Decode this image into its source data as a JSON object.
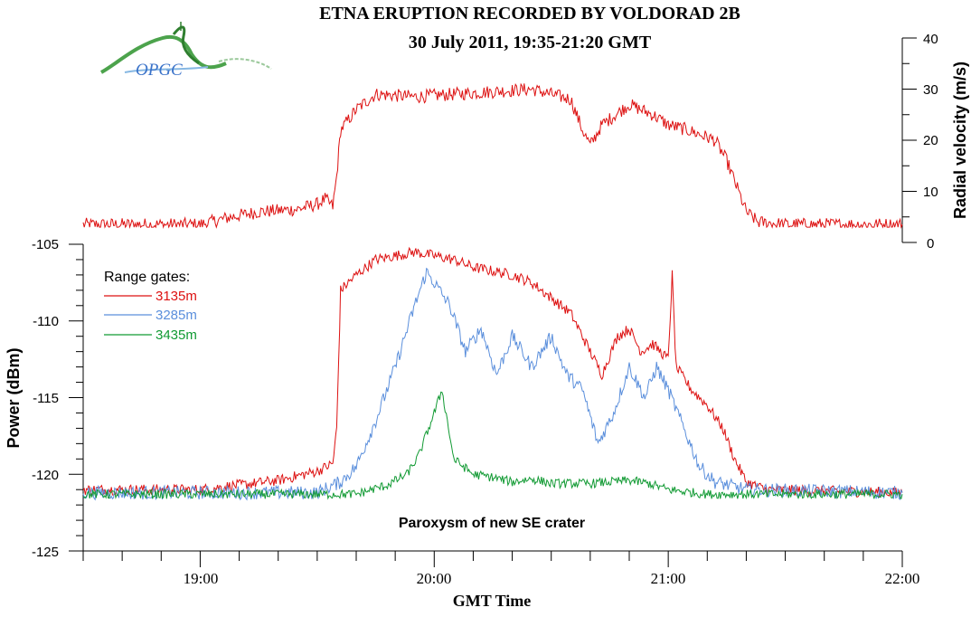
{
  "chart_data": {
    "type": "line",
    "title": "ETNA ERUPTION RECORDED BY VOLDORAD 2B",
    "subtitle": "30 July 2011, 19:35-21:20 GMT",
    "logo_text": "OPGC",
    "xlabel": "GMT Time",
    "x_ticks": [
      "19:00",
      "20:00",
      "21:00",
      "22:00"
    ],
    "xlim": [
      "18:30",
      "22:00"
    ],
    "annotation": "Paroxysm of new SE crater",
    "colors": {
      "red": "#dd1111",
      "blue": "#5b8fdc",
      "green": "#119a33"
    },
    "velocity_panel": {
      "ylabel": "Radial velocity (m/s)",
      "ylim": [
        0,
        40
      ],
      "y_ticks": [
        "0",
        "10",
        "20",
        "30",
        "40"
      ],
      "series": [
        {
          "color": "#dd1111",
          "points": [
            [
              "18:30",
              3.5
            ],
            [
              "19:00",
              3.5
            ],
            [
              "19:08",
              5
            ],
            [
              "19:15",
              6
            ],
            [
              "19:25",
              6.5
            ],
            [
              "19:30",
              7.5
            ],
            [
              "19:32",
              8.5
            ],
            [
              "19:34",
              7
            ],
            [
              "19:35",
              13
            ],
            [
              "19:36",
              22
            ],
            [
              "19:40",
              26
            ],
            [
              "19:45",
              29
            ],
            [
              "19:55",
              28.5
            ],
            [
              "20:05",
              29
            ],
            [
              "20:15",
              29.5
            ],
            [
              "20:25",
              30
            ],
            [
              "20:30",
              29
            ],
            [
              "20:35",
              28
            ],
            [
              "20:38",
              22
            ],
            [
              "20:40",
              19
            ],
            [
              "20:43",
              23
            ],
            [
              "20:50",
              27
            ],
            [
              "20:53",
              26
            ],
            [
              "20:56",
              25
            ],
            [
              "21:00",
              23
            ],
            [
              "21:05",
              22
            ],
            [
              "21:12",
              20
            ],
            [
              "21:15",
              16
            ],
            [
              "21:18",
              10
            ],
            [
              "21:20",
              6
            ],
            [
              "21:23",
              4
            ],
            [
              "21:30",
              3.5
            ],
            [
              "22:00",
              3.5
            ]
          ]
        }
      ]
    },
    "power_panel": {
      "ylabel": "Power (dBm)",
      "ylim": [
        -125,
        -105
      ],
      "y_ticks": [
        "-105",
        "-110",
        "-115",
        "-120",
        "-125"
      ],
      "legend": {
        "title": "Range gates:",
        "placement": "top-left"
      },
      "series": [
        {
          "name": "3135m",
          "color": "#dd1111",
          "points": [
            [
              "18:30",
              -121
            ],
            [
              "19:00",
              -121
            ],
            [
              "19:10",
              -120.7
            ],
            [
              "19:20",
              -120.4
            ],
            [
              "19:30",
              -119.8
            ],
            [
              "19:34",
              -119.3
            ],
            [
              "19:35",
              -117
            ],
            [
              "19:36",
              -108
            ],
            [
              "19:40",
              -107
            ],
            [
              "19:45",
              -106
            ],
            [
              "19:55",
              -105.5
            ],
            [
              "20:05",
              -106
            ],
            [
              "20:10",
              -106.5
            ],
            [
              "20:20",
              -107
            ],
            [
              "20:25",
              -107.5
            ],
            [
              "20:30",
              -108.5
            ],
            [
              "20:35",
              -109.5
            ],
            [
              "20:40",
              -112
            ],
            [
              "20:43",
              -113.5
            ],
            [
              "20:47",
              -111
            ],
            [
              "20:50",
              -110.5
            ],
            [
              "20:53",
              -112
            ],
            [
              "20:56",
              -111.5
            ],
            [
              "21:00",
              -112.5
            ],
            [
              "21:01",
              -107
            ],
            [
              "21:02",
              -113
            ],
            [
              "21:06",
              -114.5
            ],
            [
              "21:10",
              -115.5
            ],
            [
              "21:14",
              -117
            ],
            [
              "21:17",
              -119
            ],
            [
              "21:20",
              -120.5
            ],
            [
              "21:25",
              -121
            ],
            [
              "22:00",
              -121.2
            ]
          ]
        },
        {
          "name": "3285m",
          "color": "#5b8fdc",
          "points": [
            [
              "18:30",
              -121.2
            ],
            [
              "19:30",
              -121.2
            ],
            [
              "19:36",
              -120.5
            ],
            [
              "19:40",
              -119.5
            ],
            [
              "19:45",
              -116.5
            ],
            [
              "19:50",
              -113
            ],
            [
              "19:55",
              -109
            ],
            [
              "19:58",
              -106.8
            ],
            [
              "20:00",
              -107.5
            ],
            [
              "20:04",
              -109
            ],
            [
              "20:08",
              -112
            ],
            [
              "20:12",
              -110.5
            ],
            [
              "20:16",
              -113.5
            ],
            [
              "20:20",
              -111
            ],
            [
              "20:25",
              -113
            ],
            [
              "20:30",
              -111
            ],
            [
              "20:34",
              -113.5
            ],
            [
              "20:38",
              -114.5
            ],
            [
              "20:42",
              -118
            ],
            [
              "20:46",
              -116
            ],
            [
              "20:50",
              -113
            ],
            [
              "20:54",
              -115
            ],
            [
              "20:57",
              -113
            ],
            [
              "21:00",
              -114.5
            ],
            [
              "21:04",
              -117
            ],
            [
              "21:08",
              -119.5
            ],
            [
              "21:12",
              -120.5
            ],
            [
              "21:20",
              -121
            ],
            [
              "22:00",
              -121.2
            ]
          ]
        },
        {
          "name": "3435m",
          "color": "#119a33",
          "points": [
            [
              "18:30",
              -121.3
            ],
            [
              "19:40",
              -121.3
            ],
            [
              "19:48",
              -120.7
            ],
            [
              "19:53",
              -120
            ],
            [
              "19:56",
              -118.8
            ],
            [
              "20:00",
              -116
            ],
            [
              "20:02",
              -114.5
            ],
            [
              "20:05",
              -119
            ],
            [
              "20:10",
              -120
            ],
            [
              "20:15",
              -120.2
            ],
            [
              "20:20",
              -120.5
            ],
            [
              "20:25",
              -120.3
            ],
            [
              "20:30",
              -120.6
            ],
            [
              "20:40",
              -120.6
            ],
            [
              "20:50",
              -120.4
            ],
            [
              "20:55",
              -120.6
            ],
            [
              "21:00",
              -121
            ],
            [
              "21:10",
              -121.3
            ],
            [
              "22:00",
              -121.3
            ]
          ]
        }
      ]
    }
  }
}
